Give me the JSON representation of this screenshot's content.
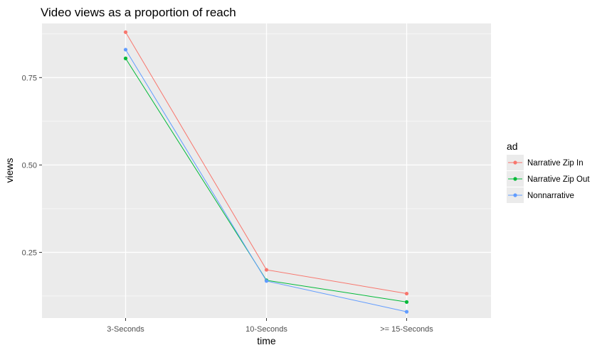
{
  "chart_data": {
    "type": "line",
    "title": "Video views as a proportion of reach",
    "xlabel": "time",
    "ylabel": "views",
    "categories": [
      "3-Seconds",
      "10-Seconds",
      ">= 15-Seconds"
    ],
    "ylim": [
      0.062,
      0.905
    ],
    "yticks": [
      0.25,
      0.5,
      0.75
    ],
    "ytick_labels": [
      "0.25",
      "0.50",
      "0.75"
    ],
    "grid": true,
    "legend": {
      "title": "ad",
      "placement": "right"
    },
    "series": [
      {
        "name": "Narrative Zip In",
        "color": "#F8766D",
        "values": [
          0.88,
          0.2,
          0.132
        ]
      },
      {
        "name": "Narrative Zip Out",
        "color": "#00BA38",
        "values": [
          0.805,
          0.17,
          0.108
        ]
      },
      {
        "name": "Nonnarrative",
        "color": "#619CFF",
        "values": [
          0.83,
          0.168,
          0.08
        ]
      }
    ]
  }
}
